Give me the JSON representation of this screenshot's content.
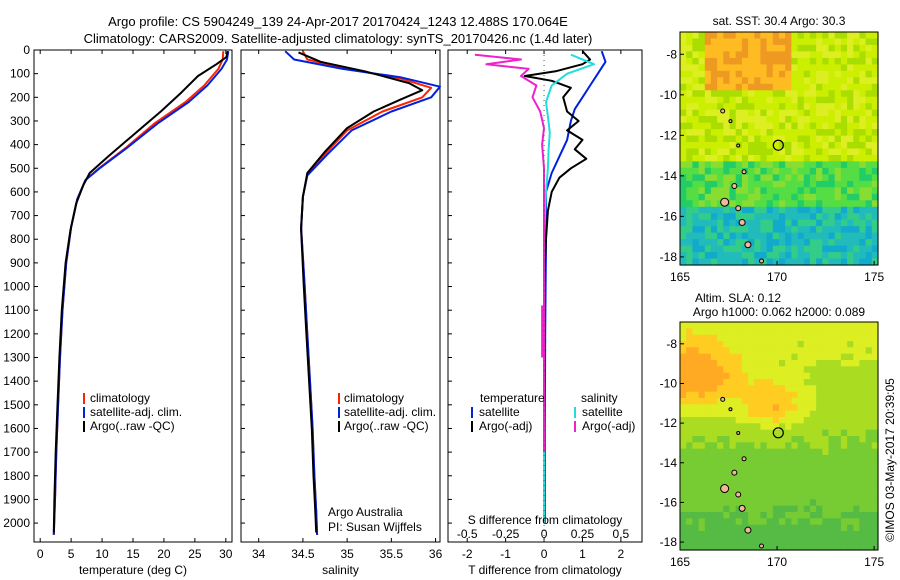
{
  "figure": {
    "title_line1": "Argo profile: CS 5904249_139 24-Apr-2017 20170424_1243 12.488S 170.064E",
    "title_line2": "Climatology: CARS2009. Satellite-adjusted climatology: synTS_20170426.nc (1.4d later)",
    "copyright": "©IMOS 03-May-2017 20:39:05"
  },
  "colors": {
    "climatology": "#ff2200",
    "satellite": "#0022dd",
    "argo": "#000000",
    "sal_satellite": "#22dddd",
    "sal_argo": "#ee22cc",
    "axis": "#000000"
  },
  "chart_data": [
    {
      "id": "temperature",
      "type": "line",
      "xlabel": "temperature (deg C)",
      "ylabel": "",
      "xlim": [
        -1,
        31
      ],
      "ylim": [
        2080,
        0
      ],
      "xticks": [
        0,
        5,
        10,
        15,
        20,
        25,
        30
      ],
      "yticks": [
        0,
        100,
        200,
        300,
        400,
        500,
        600,
        700,
        800,
        900,
        1000,
        1100,
        1200,
        1300,
        1400,
        1500,
        1600,
        1700,
        1800,
        1900,
        2000
      ],
      "legend": [
        "climatology",
        "satellite-adj. clim.",
        "Argo(..raw -QC)"
      ],
      "series": [
        {
          "name": "climatology",
          "color_key": "climatology",
          "points": [
            [
              29.6,
              5
            ],
            [
              29.5,
              40
            ],
            [
              28.8,
              80
            ],
            [
              26.5,
              150
            ],
            [
              23.5,
              220
            ],
            [
              18.5,
              310
            ],
            [
              14,
              410
            ],
            [
              9.5,
              500
            ],
            [
              7.3,
              550
            ],
            [
              6,
              630
            ],
            [
              5,
              750
            ],
            [
              4.2,
              900
            ],
            [
              3.6,
              1100
            ],
            [
              3.2,
              1300
            ],
            [
              2.9,
              1500
            ],
            [
              2.6,
              1700
            ],
            [
              2.4,
              1900
            ],
            [
              2.2,
              2050
            ]
          ]
        },
        {
          "name": "satellite-adj. clim.",
          "color_key": "satellite",
          "points": [
            [
              30.4,
              5
            ],
            [
              30.2,
              40
            ],
            [
              29.3,
              80
            ],
            [
              27,
              150
            ],
            [
              24,
              220
            ],
            [
              19,
              310
            ],
            [
              14.2,
              410
            ],
            [
              9.6,
              500
            ],
            [
              7.3,
              550
            ],
            [
              6,
              630
            ],
            [
              5,
              750
            ],
            [
              4.2,
              900
            ],
            [
              3.6,
              1100
            ],
            [
              3.2,
              1300
            ],
            [
              2.9,
              1500
            ],
            [
              2.6,
              1700
            ],
            [
              2.4,
              1900
            ],
            [
              2.2,
              2050
            ]
          ]
        },
        {
          "name": "Argo(..raw -QC)",
          "color_key": "argo",
          "points": [
            [
              30.3,
              5
            ],
            [
              30.1,
              30
            ],
            [
              28.5,
              60
            ],
            [
              25.5,
              110
            ],
            [
              22.8,
              180
            ],
            [
              19.5,
              260
            ],
            [
              15,
              360
            ],
            [
              11,
              450
            ],
            [
              8,
              520
            ],
            [
              7,
              570
            ],
            [
              5.8,
              650
            ],
            [
              4.9,
              760
            ],
            [
              4.1,
              900
            ],
            [
              3.5,
              1100
            ],
            [
              3.1,
              1300
            ],
            [
              2.8,
              1500
            ],
            [
              2.5,
              1700
            ],
            [
              2.3,
              1900
            ],
            [
              2.2,
              2040
            ]
          ]
        }
      ]
    },
    {
      "id": "salinity",
      "type": "line",
      "xlabel": "salinity",
      "xlim": [
        33.8,
        36.05
      ],
      "ylim": [
        2080,
        0
      ],
      "xticks": [
        34,
        34.5,
        35,
        35.5,
        36
      ],
      "legend": [
        "climatology",
        "satellite-adj. clim.",
        "Argo(..raw -QC)"
      ],
      "annotation": [
        "Argo Australia",
        "PI: Susan Wijffels"
      ],
      "series": [
        {
          "name": "climatology",
          "color_key": "climatology",
          "points": [
            [
              34.5,
              5
            ],
            [
              34.55,
              40
            ],
            [
              35,
              80
            ],
            [
              35.6,
              120
            ],
            [
              35.95,
              160
            ],
            [
              35.85,
              200
            ],
            [
              35.4,
              260
            ],
            [
              35,
              340
            ],
            [
              34.75,
              440
            ],
            [
              34.55,
              530
            ],
            [
              34.5,
              620
            ],
            [
              34.48,
              750
            ],
            [
              34.52,
              1000
            ],
            [
              34.55,
              1200
            ],
            [
              34.58,
              1400
            ],
            [
              34.61,
              1600
            ],
            [
              34.63,
              1800
            ],
            [
              34.65,
              1950
            ],
            [
              34.66,
              2050
            ]
          ]
        },
        {
          "name": "satellite-adj. clim.",
          "color_key": "satellite",
          "points": [
            [
              34.3,
              5
            ],
            [
              34.4,
              40
            ],
            [
              34.95,
              80
            ],
            [
              35.6,
              115
            ],
            [
              36.05,
              155
            ],
            [
              35.95,
              200
            ],
            [
              35.5,
              260
            ],
            [
              35.05,
              340
            ],
            [
              34.78,
              440
            ],
            [
              34.55,
              530
            ],
            [
              34.5,
              620
            ],
            [
              34.48,
              750
            ],
            [
              34.52,
              1000
            ],
            [
              34.55,
              1200
            ],
            [
              34.58,
              1400
            ],
            [
              34.61,
              1600
            ],
            [
              34.63,
              1800
            ],
            [
              34.65,
              1950
            ],
            [
              34.66,
              2050
            ]
          ]
        },
        {
          "name": "Argo(..raw -QC)",
          "color_key": "argo",
          "points": [
            [
              34.45,
              10
            ],
            [
              34.7,
              50
            ],
            [
              35.2,
              90
            ],
            [
              35.7,
              140
            ],
            [
              35.85,
              170
            ],
            [
              35.6,
              210
            ],
            [
              35.3,
              260
            ],
            [
              35,
              330
            ],
            [
              34.75,
              430
            ],
            [
              34.55,
              520
            ],
            [
              34.5,
              620
            ],
            [
              34.48,
              760
            ],
            [
              34.51,
              1000
            ],
            [
              34.54,
              1200
            ],
            [
              34.57,
              1400
            ],
            [
              34.6,
              1600
            ],
            [
              34.62,
              1800
            ],
            [
              34.64,
              1950
            ],
            [
              34.65,
              2040
            ]
          ]
        }
      ]
    },
    {
      "id": "difference",
      "type": "line",
      "xlabel": "T difference from climatology",
      "xlabel_top": "S difference from climatology",
      "xlim": [
        -2.5,
        2.55
      ],
      "ylim": [
        2080,
        0
      ],
      "xticks": [
        -2,
        -1,
        0,
        1,
        2
      ],
      "s_ticks": [
        "-0.5",
        "-0.25",
        "0",
        "0.25",
        "0.5"
      ],
      "s_tick_positions": [
        -2,
        -1,
        0,
        1,
        2
      ],
      "legend_temperature": {
        "title": "temperature",
        "items": [
          "satellite",
          "Argo(-adj)"
        ]
      },
      "legend_salinity": {
        "title": "salinity",
        "items": [
          "satellite",
          "Argo(-adj)"
        ]
      },
      "series": [
        {
          "name": "T satellite",
          "color_key": "satellite",
          "points": [
            [
              1.5,
              5
            ],
            [
              1.6,
              50
            ],
            [
              1.4,
              100
            ],
            [
              1.2,
              150
            ],
            [
              1.0,
              200
            ],
            [
              0.8,
              250
            ],
            [
              0.7,
              300
            ],
            [
              0.6,
              380
            ],
            [
              0.4,
              450
            ],
            [
              0.2,
              520
            ],
            [
              0.05,
              600
            ],
            [
              0.05,
              800
            ],
            [
              0.03,
              1200
            ],
            [
              0.02,
              1600
            ],
            [
              0.02,
              2000
            ]
          ]
        },
        {
          "name": "T Argo(-adj)",
          "color_key": "argo",
          "points": [
            [
              1.0,
              5
            ],
            [
              1.2,
              40
            ],
            [
              1.0,
              60
            ],
            [
              0.3,
              90
            ],
            [
              -0.5,
              110
            ],
            [
              0.2,
              130
            ],
            [
              0.7,
              160
            ],
            [
              0.5,
              200
            ],
            [
              0.6,
              260
            ],
            [
              0.9,
              300
            ],
            [
              0.6,
              340
            ],
            [
              1.0,
              380
            ],
            [
              0.8,
              420
            ],
            [
              1.1,
              460
            ],
            [
              0.7,
              500
            ],
            [
              0.4,
              540
            ],
            [
              0.2,
              600
            ],
            [
              0.1,
              680
            ],
            [
              0.05,
              800
            ],
            [
              0.0,
              1000
            ],
            [
              0.0,
              1400
            ],
            [
              0.0,
              2000
            ]
          ]
        },
        {
          "name": "S satellite",
          "color_key": "sal_satellite",
          "points": [
            [
              0.7,
              20
            ],
            [
              1.3,
              60
            ],
            [
              0.6,
              100
            ],
            [
              0.2,
              150
            ],
            [
              0.05,
              220
            ],
            [
              0.1,
              280
            ],
            [
              0.15,
              350
            ],
            [
              0.12,
              420
            ],
            [
              0.1,
              500
            ],
            [
              0.05,
              600
            ],
            [
              0.0,
              800
            ],
            [
              0.0,
              1200
            ],
            [
              0.0,
              1600
            ],
            [
              0.0,
              2000
            ]
          ]
        },
        {
          "name": "S Argo(-adj)",
          "color_key": "sal_argo",
          "points": [
            [
              -1.8,
              20
            ],
            [
              -0.6,
              40
            ],
            [
              -1.5,
              60
            ],
            [
              -0.4,
              80
            ],
            [
              -0.6,
              110
            ],
            [
              -0.2,
              150
            ],
            [
              -0.3,
              200
            ],
            [
              -0.1,
              260
            ],
            [
              0.0,
              330
            ],
            [
              -0.05,
              400
            ],
            [
              0.0,
              500
            ],
            [
              0.0,
              700
            ],
            [
              0.0,
              1000
            ],
            [
              0.0,
              1400
            ],
            [
              0.0,
              1700
            ]
          ]
        }
      ]
    },
    {
      "id": "sst_map",
      "type": "heatmap",
      "title": "sat. SST: 30.4  Argo: 30.3",
      "xlim": [
        165,
        175.2
      ],
      "ylim": [
        -18.4,
        -6.9
      ],
      "xticks": [
        165,
        170,
        175
      ],
      "yticks": [
        -8,
        -10,
        -12,
        -14,
        -16,
        -18
      ],
      "marker": {
        "lon": 170.064,
        "lat": -12.488
      }
    },
    {
      "id": "sla_map",
      "type": "heatmap",
      "title_line1": "Altim. SLA: 0.12",
      "title_line2": "Argo h1000: 0.062 h2000: 0.089",
      "xlim": [
        165,
        175.2
      ],
      "ylim": [
        -18.4,
        -6.9
      ],
      "xticks": [
        165,
        170,
        175
      ],
      "yticks": [
        -8,
        -10,
        -12,
        -14,
        -16,
        -18
      ],
      "marker": {
        "lon": 170.064,
        "lat": -12.488
      }
    }
  ]
}
